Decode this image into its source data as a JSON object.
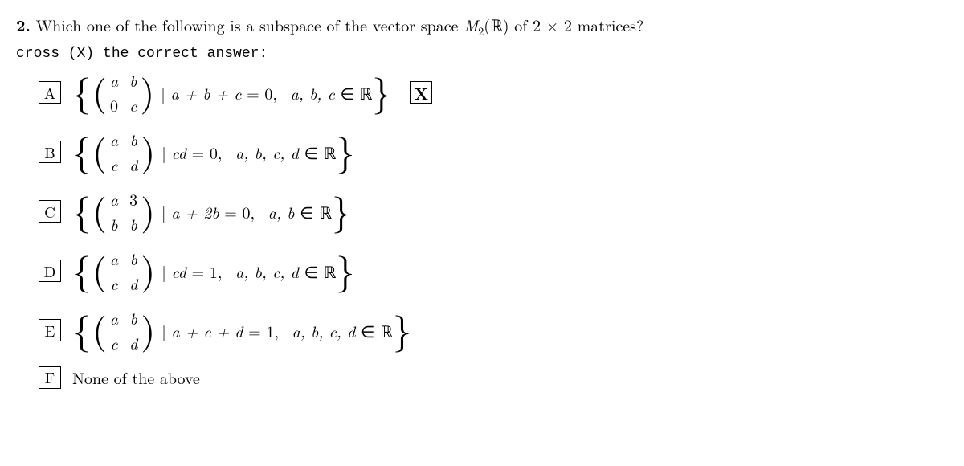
{
  "question": {
    "number": "2.",
    "text_before": "Which one of the following is a subspace of the vector space ",
    "space_symbol": "M",
    "space_sub": "2",
    "space_field": "(ℝ)",
    "text_after": " of 2 × 2 matrices?"
  },
  "instruction": "cross (X) the correct answer:",
  "mark": "X",
  "options": {
    "A": {
      "letter": "A",
      "m11": "a",
      "m12": "b",
      "m21": "0",
      "m22": "c",
      "m21_plain": true,
      "cond_lhs": "a + b + c",
      "cond_op": "=",
      "cond_rhs": "0",
      "vars": "a, b, c",
      "field": "ℝ",
      "marked": true
    },
    "B": {
      "letter": "B",
      "m11": "a",
      "m12": "b",
      "m21": "c",
      "m22": "d",
      "cond_lhs": "cd",
      "cond_op": "=",
      "cond_rhs": "0",
      "vars": "a, b, c, d",
      "field": "ℝ"
    },
    "C": {
      "letter": "C",
      "m11": "a",
      "m12": "3",
      "m21": "b",
      "m22": "b",
      "m12_plain": true,
      "cond_lhs": "a + 2b",
      "cond_op": "=",
      "cond_rhs": "0",
      "vars": "a, b",
      "field": "ℝ"
    },
    "D": {
      "letter": "D",
      "m11": "a",
      "m12": "b",
      "m21": "c",
      "m22": "d",
      "cond_lhs": "cd",
      "cond_op": "=",
      "cond_rhs": "1",
      "vars": "a, b, c, d",
      "field": "ℝ"
    },
    "E": {
      "letter": "E",
      "m11": "a",
      "m12": "b",
      "m21": "c",
      "m22": "d",
      "cond_lhs": "a + c + d",
      "cond_op": "=",
      "cond_rhs": "1",
      "vars": "a, b, c, d",
      "field": "ℝ"
    },
    "F": {
      "letter": "F",
      "text": "None of the above"
    }
  }
}
